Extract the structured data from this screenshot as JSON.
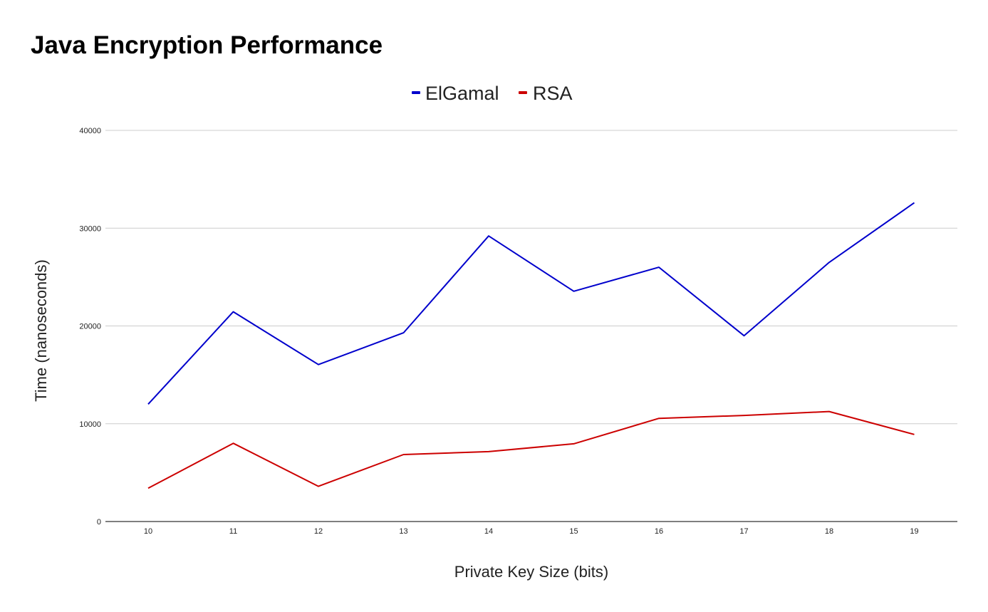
{
  "chart_data": {
    "type": "line",
    "title": "Java Encryption Performance",
    "xlabel": "Private Key Size (bits)",
    "ylabel": "Time (nanoseconds)",
    "x": [
      10,
      11,
      12,
      13,
      14,
      15,
      16,
      17,
      18,
      19
    ],
    "ylim": [
      0,
      40000
    ],
    "yticks": [
      0,
      10000,
      20000,
      30000,
      40000
    ],
    "grid": true,
    "legend_position": "top-center",
    "series": [
      {
        "name": "ElGamal",
        "color": "#0000cc",
        "values": [
          12000,
          21450,
          16050,
          19300,
          29200,
          23550,
          26000,
          19000,
          26500,
          32600
        ]
      },
      {
        "name": "RSA",
        "color": "#cc0000",
        "values": [
          3400,
          8000,
          3600,
          6850,
          7150,
          7950,
          10550,
          10850,
          11250,
          8900
        ]
      }
    ]
  }
}
